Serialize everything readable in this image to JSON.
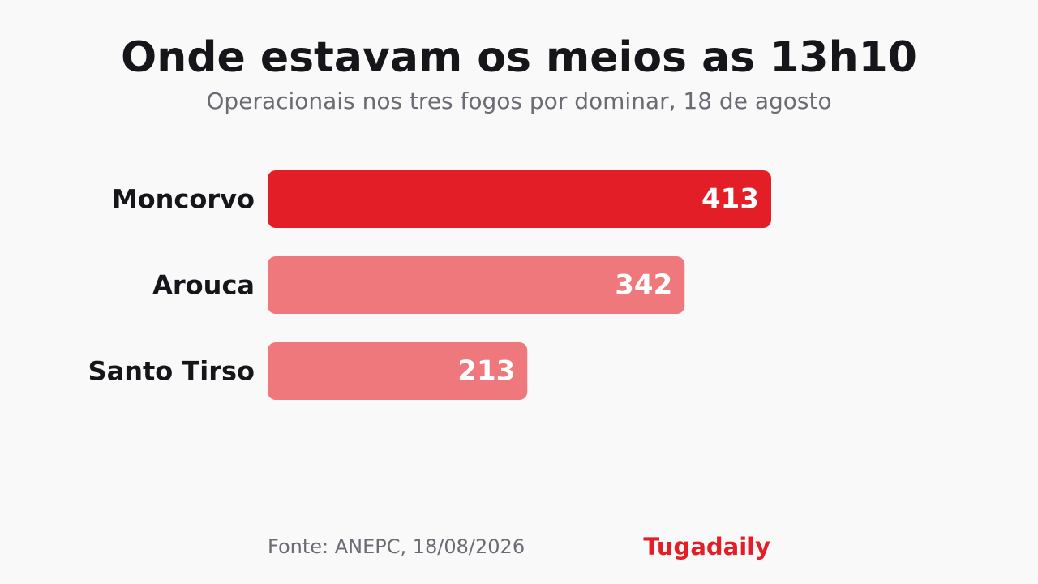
{
  "header": {
    "title": "Onde estavam os meios as 13h10",
    "subtitle": "Operacionais nos tres fogos por dominar, 18 de agosto"
  },
  "footer": {
    "source": "Fonte: ANEPC, 18/08/2026",
    "brand": "Tugadaily"
  },
  "colors": {
    "highlight": "#e41e26",
    "muted": "#ee787b",
    "background": "#f9f9f9"
  },
  "chart_data": {
    "type": "bar",
    "orientation": "horizontal",
    "title": "Onde estavam os meios as 13h10",
    "subtitle": "Operacionais nos tres fogos por dominar, 18 de agosto",
    "categories": [
      "Moncorvo",
      "Arouca",
      "Santo Tirso"
    ],
    "values": [
      413,
      342,
      213
    ],
    "highlighted": [
      "Moncorvo"
    ],
    "xlim": [
      0,
      413
    ],
    "grid": false,
    "legend": "none"
  }
}
